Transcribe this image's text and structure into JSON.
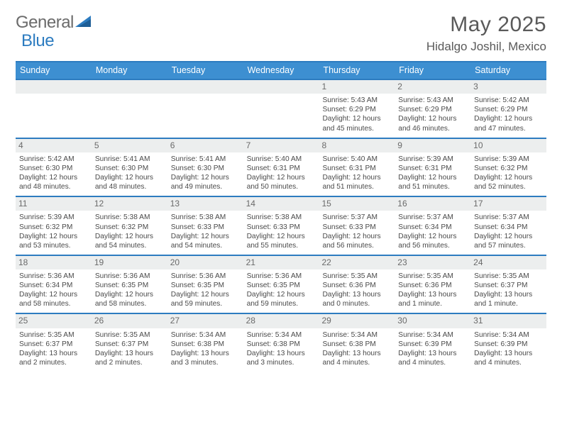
{
  "brand": {
    "part1": "General",
    "part2": "Blue"
  },
  "title": "May 2025",
  "location": "Hidalgo Joshil, Mexico",
  "colors": {
    "accent": "#2d7cc0",
    "header_bg": "#3d8fd1",
    "daynum_bg": "#eceeee",
    "text": "#4a4a4a"
  },
  "day_headers": [
    "Sunday",
    "Monday",
    "Tuesday",
    "Wednesday",
    "Thursday",
    "Friday",
    "Saturday"
  ],
  "weeks": [
    [
      null,
      null,
      null,
      null,
      {
        "n": "1",
        "sr": "5:43 AM",
        "ss": "6:29 PM",
        "dl": "12 hours and 45 minutes."
      },
      {
        "n": "2",
        "sr": "5:43 AM",
        "ss": "6:29 PM",
        "dl": "12 hours and 46 minutes."
      },
      {
        "n": "3",
        "sr": "5:42 AM",
        "ss": "6:29 PM",
        "dl": "12 hours and 47 minutes."
      }
    ],
    [
      {
        "n": "4",
        "sr": "5:42 AM",
        "ss": "6:30 PM",
        "dl": "12 hours and 48 minutes."
      },
      {
        "n": "5",
        "sr": "5:41 AM",
        "ss": "6:30 PM",
        "dl": "12 hours and 48 minutes."
      },
      {
        "n": "6",
        "sr": "5:41 AM",
        "ss": "6:30 PM",
        "dl": "12 hours and 49 minutes."
      },
      {
        "n": "7",
        "sr": "5:40 AM",
        "ss": "6:31 PM",
        "dl": "12 hours and 50 minutes."
      },
      {
        "n": "8",
        "sr": "5:40 AM",
        "ss": "6:31 PM",
        "dl": "12 hours and 51 minutes."
      },
      {
        "n": "9",
        "sr": "5:39 AM",
        "ss": "6:31 PM",
        "dl": "12 hours and 51 minutes."
      },
      {
        "n": "10",
        "sr": "5:39 AM",
        "ss": "6:32 PM",
        "dl": "12 hours and 52 minutes."
      }
    ],
    [
      {
        "n": "11",
        "sr": "5:39 AM",
        "ss": "6:32 PM",
        "dl": "12 hours and 53 minutes."
      },
      {
        "n": "12",
        "sr": "5:38 AM",
        "ss": "6:32 PM",
        "dl": "12 hours and 54 minutes."
      },
      {
        "n": "13",
        "sr": "5:38 AM",
        "ss": "6:33 PM",
        "dl": "12 hours and 54 minutes."
      },
      {
        "n": "14",
        "sr": "5:38 AM",
        "ss": "6:33 PM",
        "dl": "12 hours and 55 minutes."
      },
      {
        "n": "15",
        "sr": "5:37 AM",
        "ss": "6:33 PM",
        "dl": "12 hours and 56 minutes."
      },
      {
        "n": "16",
        "sr": "5:37 AM",
        "ss": "6:34 PM",
        "dl": "12 hours and 56 minutes."
      },
      {
        "n": "17",
        "sr": "5:37 AM",
        "ss": "6:34 PM",
        "dl": "12 hours and 57 minutes."
      }
    ],
    [
      {
        "n": "18",
        "sr": "5:36 AM",
        "ss": "6:34 PM",
        "dl": "12 hours and 58 minutes."
      },
      {
        "n": "19",
        "sr": "5:36 AM",
        "ss": "6:35 PM",
        "dl": "12 hours and 58 minutes."
      },
      {
        "n": "20",
        "sr": "5:36 AM",
        "ss": "6:35 PM",
        "dl": "12 hours and 59 minutes."
      },
      {
        "n": "21",
        "sr": "5:36 AM",
        "ss": "6:35 PM",
        "dl": "12 hours and 59 minutes."
      },
      {
        "n": "22",
        "sr": "5:35 AM",
        "ss": "6:36 PM",
        "dl": "13 hours and 0 minutes."
      },
      {
        "n": "23",
        "sr": "5:35 AM",
        "ss": "6:36 PM",
        "dl": "13 hours and 1 minute."
      },
      {
        "n": "24",
        "sr": "5:35 AM",
        "ss": "6:37 PM",
        "dl": "13 hours and 1 minute."
      }
    ],
    [
      {
        "n": "25",
        "sr": "5:35 AM",
        "ss": "6:37 PM",
        "dl": "13 hours and 2 minutes."
      },
      {
        "n": "26",
        "sr": "5:35 AM",
        "ss": "6:37 PM",
        "dl": "13 hours and 2 minutes."
      },
      {
        "n": "27",
        "sr": "5:34 AM",
        "ss": "6:38 PM",
        "dl": "13 hours and 3 minutes."
      },
      {
        "n": "28",
        "sr": "5:34 AM",
        "ss": "6:38 PM",
        "dl": "13 hours and 3 minutes."
      },
      {
        "n": "29",
        "sr": "5:34 AM",
        "ss": "6:38 PM",
        "dl": "13 hours and 4 minutes."
      },
      {
        "n": "30",
        "sr": "5:34 AM",
        "ss": "6:39 PM",
        "dl": "13 hours and 4 minutes."
      },
      {
        "n": "31",
        "sr": "5:34 AM",
        "ss": "6:39 PM",
        "dl": "13 hours and 4 minutes."
      }
    ]
  ],
  "labels": {
    "sunrise": "Sunrise: ",
    "sunset": "Sunset: ",
    "daylight": "Daylight: "
  }
}
